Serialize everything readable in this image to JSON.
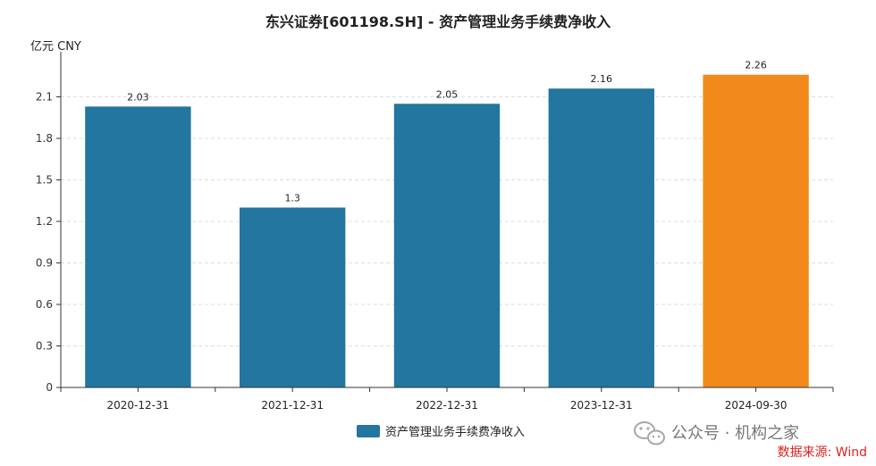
{
  "chart_data": {
    "type": "bar",
    "title": "东兴证券[601198.SH] - 资产管理业务手续费净收入",
    "unit_label": "亿元  CNY",
    "categories": [
      "2020-12-31",
      "2021-12-31",
      "2022-12-31",
      "2023-12-31",
      "2024-09-30"
    ],
    "series": [
      {
        "name": "资产管理业务手续费净收入",
        "values": [
          2.03,
          1.3,
          2.05,
          2.16,
          2.26
        ],
        "data_labels": [
          "2.03",
          "1.3",
          "2.05",
          "2.16",
          "2.26"
        ]
      }
    ],
    "colors": {
      "bar": "#22769f",
      "highlight_bar": "#f28a1b",
      "highlight_index": 4
    },
    "ylim": [
      0,
      2.4
    ],
    "yticks": [
      0,
      0.3,
      0.6,
      0.9,
      1.2,
      1.5,
      1.8,
      2.1
    ],
    "ytick_labels": [
      "0",
      "0.3",
      "0.6",
      "0.9",
      "1.2",
      "1.5",
      "1.8",
      "2.1"
    ],
    "grid": true,
    "legend_position": "bottom-center"
  },
  "watermark": {
    "icon": "wechat-icon",
    "text": "公众号 · 机构之家"
  },
  "source": "数据来源: Wind"
}
